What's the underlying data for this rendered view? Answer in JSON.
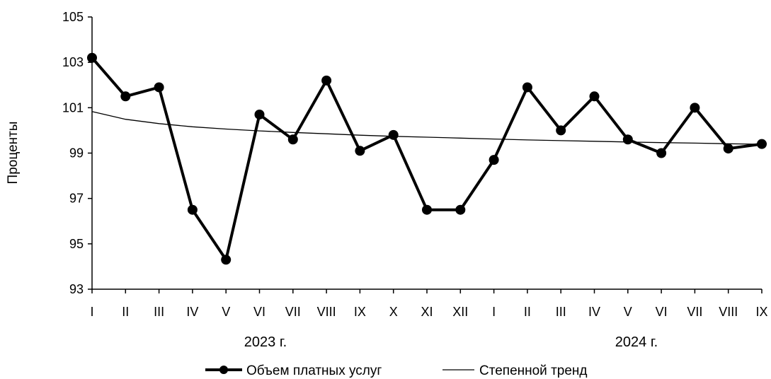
{
  "chart_data": {
    "type": "line",
    "ylabel": "Проценты",
    "ylim": [
      93,
      105
    ],
    "yticks": [
      "93",
      "95",
      "97",
      "99",
      "101",
      "103",
      "105"
    ],
    "categories": [
      "I",
      "II",
      "III",
      "IV",
      "V",
      "VI",
      "VII",
      "VIII",
      "IX",
      "X",
      "XI",
      "XII",
      "I",
      "II",
      "III",
      "IV",
      "V",
      "VI",
      "VII",
      "VIII",
      "IX"
    ],
    "groups": [
      "2023 г.",
      "2024 г."
    ],
    "series": [
      {
        "name": "Объем платных услуг",
        "color": "#000000",
        "marker": "circle",
        "values": [
          103.2,
          101.5,
          101.9,
          96.5,
          94.3,
          100.7,
          99.6,
          102.2,
          99.1,
          99.8,
          96.5,
          96.5,
          98.7,
          101.9,
          100.0,
          101.5,
          99.6,
          99.0,
          101.0,
          99.2,
          99.4
        ]
      },
      {
        "name": "Степенной тренд",
        "color": "#000000",
        "type": "power-trend",
        "values": [
          100.83,
          100.49,
          100.3,
          100.16,
          100.06,
          99.98,
          99.91,
          99.85,
          99.79,
          99.74,
          99.7,
          99.66,
          99.62,
          99.58,
          99.55,
          99.52,
          99.49,
          99.46,
          99.44,
          99.41,
          99.39
        ]
      }
    ],
    "legend": "bottom",
    "grid": false
  }
}
